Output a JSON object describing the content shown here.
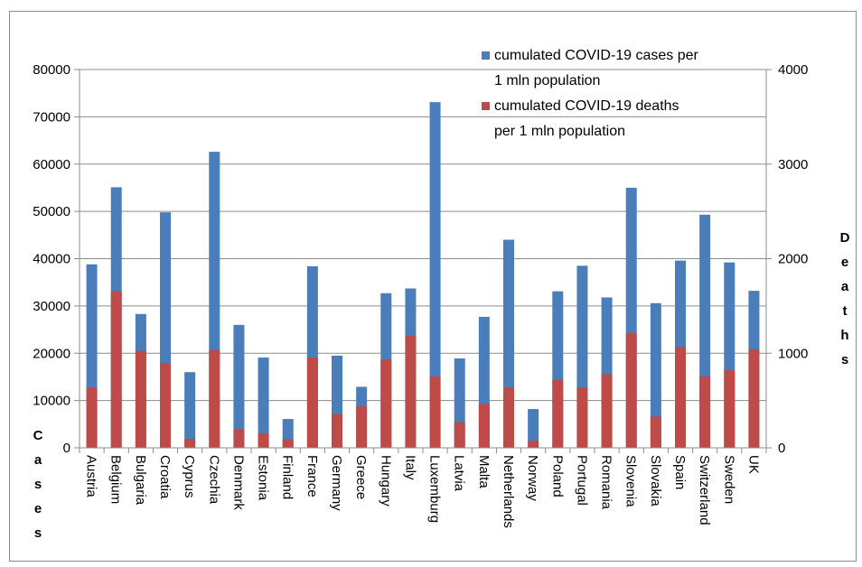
{
  "chart_data": {
    "type": "bar",
    "stacked_overlay": true,
    "categories": [
      "Austria",
      "Belgium",
      "Bulgaria",
      "Croatia",
      "Cyprus",
      "Czechia",
      "Denmark",
      "Estonia",
      "Finland",
      "France",
      "Germany",
      "Greece",
      "Hungary",
      "Italy",
      "Luxemburg",
      "Latvia",
      "Malta",
      "Netherlands",
      "Norway",
      "Poland",
      "Portugal",
      "Romania",
      "Slovenia",
      "Slovakia",
      "Spain",
      "Switzerland",
      "Sweden",
      "UK"
    ],
    "series": [
      {
        "name": "cumulated COVID-19 cases per 1 mln population",
        "axis": "left",
        "color": "#4a7ebb",
        "values": [
          38800,
          55100,
          28300,
          49800,
          16000,
          62600,
          26000,
          19100,
          6100,
          38400,
          19500,
          12900,
          32700,
          33700,
          73100,
          18900,
          27700,
          44000,
          8200,
          33100,
          38500,
          31800,
          55000,
          30600,
          39600,
          49300,
          39200,
          33200
        ]
      },
      {
        "name": "cumulated COVID-19 deaths per 1 mln population",
        "axis": "right",
        "color": "#be4b48",
        "values": [
          640,
          1655,
          1025,
          895,
          95,
          1035,
          195,
          155,
          90,
          955,
          355,
          440,
          935,
          1185,
          755,
          270,
          465,
          640,
          75,
          720,
          640,
          780,
          1215,
          330,
          1065,
          755,
          820,
          1040
        ]
      }
    ],
    "y_left": {
      "min": 0,
      "max": 80000,
      "ticks": [
        "0",
        "10000",
        "20000",
        "30000",
        "40000",
        "50000",
        "60000",
        "70000",
        "80000"
      ]
    },
    "y_right": {
      "min": 0,
      "max": 4000,
      "ticks": [
        "0",
        "1000",
        "2000",
        "3000",
        "4000"
      ]
    },
    "y_left_label": "Cases",
    "y_right_label": "Deaths",
    "legend_position": "top-right",
    "grid": true
  }
}
